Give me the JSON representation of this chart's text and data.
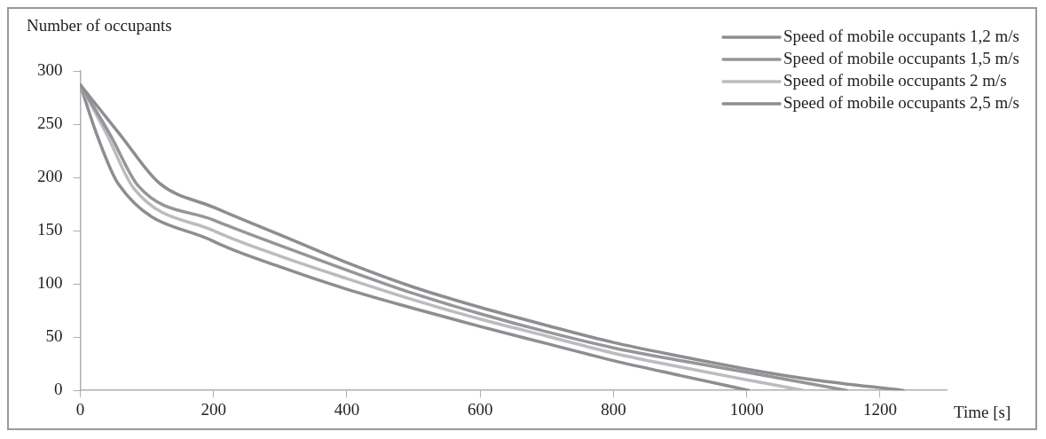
{
  "chart_data": {
    "type": "line",
    "xlabel": "Time [s]",
    "ylabel": "Number of occupants",
    "xlim": [
      0,
      1300
    ],
    "xticks": [
      0,
      200,
      400,
      600,
      800,
      1000,
      1200
    ],
    "ylim": [
      0,
      300
    ],
    "yticks": [
      0,
      50,
      100,
      150,
      200,
      250,
      300
    ],
    "grid": false,
    "legend": "top right",
    "marker": "none",
    "line_style": "solid",
    "series": [
      {
        "name": "Speed of mobile occupants 1,2 m/s",
        "color": "#8e8e92",
        "x": [
          0,
          60,
          118,
          200,
          300,
          400,
          500,
          600,
          700,
          800,
          900,
          1000,
          1100,
          1235
        ],
        "values": [
          287,
          240,
          195,
          172,
          146,
          120,
          97,
          78,
          61,
          45,
          32,
          20,
          10,
          0
        ]
      },
      {
        "name": "Speed of mobile occupants 1,5 m/s",
        "color": "#96969a",
        "x": [
          0,
          45,
          87,
          200,
          300,
          400,
          500,
          600,
          700,
          800,
          900,
          1000,
          1150
        ],
        "values": [
          287,
          240,
          192,
          160,
          136,
          113,
          91,
          72,
          55,
          40,
          28,
          17,
          0
        ]
      },
      {
        "name": "Speed of mobile occupants 2 m/s",
        "color": "#bcbcc0",
        "x": [
          0,
          40,
          80,
          200,
          300,
          400,
          500,
          600,
          700,
          800,
          900,
          1000,
          1085
        ],
        "values": [
          287,
          240,
          190,
          150,
          126,
          105,
          85,
          67,
          51,
          35,
          22,
          10,
          0
        ]
      },
      {
        "name": "Speed of mobile occupants 2,5 m/s",
        "color": "#8e8e92",
        "x": [
          0,
          25,
          57,
          200,
          300,
          400,
          500,
          600,
          700,
          800,
          900,
          1003
        ],
        "values": [
          287,
          240,
          194,
          140,
          116,
          95,
          77,
          60,
          44,
          28,
          14,
          0
        ]
      }
    ]
  }
}
